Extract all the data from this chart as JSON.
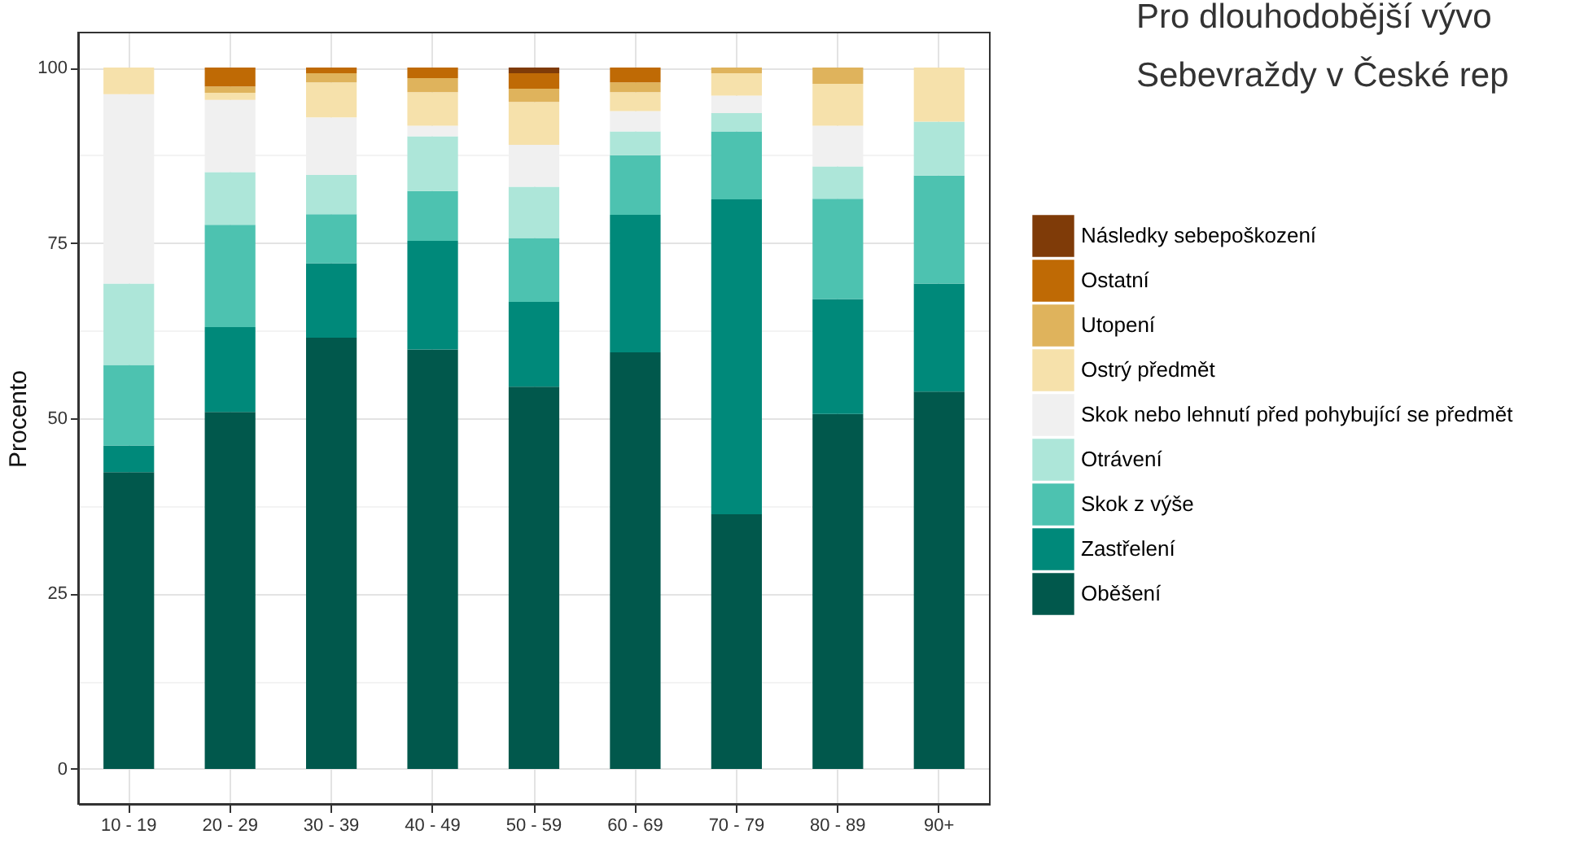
{
  "chart_data": {
    "type": "bar",
    "stacked": true,
    "ylabel": "Procento",
    "categories": [
      "10 - 19",
      "20 - 29",
      "30 - 39",
      "40 - 49",
      "50 - 59",
      "60 - 69",
      "70 - 79",
      "80 - 89",
      "90+"
    ],
    "series": [
      {
        "name": "Oběšení",
        "color": "#01584c",
        "values": [
          42.3,
          50.9,
          61.5,
          59.8,
          54.5,
          59.4,
          36.3,
          50.6,
          53.8
        ]
      },
      {
        "name": "Zastřelení",
        "color": "#00897a",
        "values": [
          3.8,
          12.1,
          10.6,
          15.5,
          12.1,
          19.6,
          44.9,
          16.4,
          15.4
        ]
      },
      {
        "name": "Skok z výše",
        "color": "#4dc2b0",
        "values": [
          11.5,
          14.6,
          7.0,
          7.1,
          9.1,
          8.5,
          9.7,
          14.3,
          15.4
        ]
      },
      {
        "name": "Otrávení",
        "color": "#ade6d9",
        "values": [
          11.6,
          7.5,
          5.6,
          7.8,
          7.3,
          3.4,
          2.6,
          4.6,
          7.7
        ]
      },
      {
        "name": "Skok nebo lehnutí před pohybující se předmět",
        "color": "#f0f0f0",
        "values": [
          27.0,
          10.3,
          8.2,
          1.5,
          6.0,
          2.9,
          2.5,
          5.8,
          null
        ]
      },
      {
        "name": "Ostrý předmět",
        "color": "#f6e1ab",
        "values": [
          3.8,
          1.0,
          5.0,
          4.8,
          6.1,
          2.7,
          3.2,
          6.0,
          7.7
        ]
      },
      {
        "name": "Utopení",
        "color": "#dfb35c",
        "values": [
          null,
          0.9,
          1.3,
          2.0,
          1.9,
          1.4,
          0.8,
          2.3,
          null
        ]
      },
      {
        "name": "Ostatní",
        "color": "#bf6a05",
        "values": [
          null,
          2.7,
          0.8,
          1.5,
          2.2,
          2.1,
          null,
          null,
          null
        ]
      },
      {
        "name": "Následky sebepoškození",
        "color": "#7f3b08",
        "values": [
          null,
          null,
          null,
          null,
          0.8,
          null,
          null,
          null,
          null
        ]
      }
    ],
    "ylim": [
      -5,
      105
    ],
    "yticks": [
      0,
      {
        "value": 12.5,
        "label": null
      },
      25,
      {
        "value": 37.5,
        "label": null
      },
      50,
      {
        "value": 62.5,
        "label": null
      },
      75,
      {
        "value": 87.5,
        "label": null
      },
      100
    ],
    "grid": true,
    "legend": "right",
    "annotations": [
      "Pro dlouhodobější vývo",
      "Sebevraždy v České rep"
    ]
  }
}
